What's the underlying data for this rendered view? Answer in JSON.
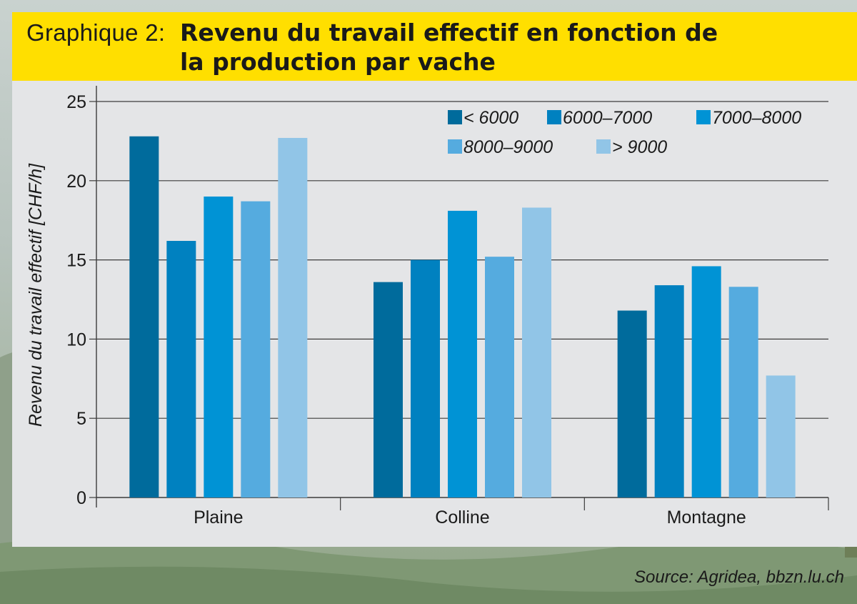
{
  "header": {
    "prefix": "Graphique 2:",
    "title": "Revenu du travail effectif en fonction de la production par vache"
  },
  "source": "Source: Agridea, bbzn.lu.ch",
  "colors": {
    "title_band": "#ffdf00",
    "panel": "#e4e5e7",
    "series": [
      "#006b9c",
      "#0081c0",
      "#0093d5",
      "#55abdf",
      "#91c5e7"
    ]
  },
  "chart_data": {
    "type": "bar",
    "title": "Revenu du travail effectif en fonction de la production par vache",
    "xlabel": "",
    "ylabel": "Revenu du travail effectif  [CHF/h]",
    "ylim": [
      0,
      25
    ],
    "yticks": [
      0,
      5,
      10,
      15,
      20,
      25
    ],
    "grid": true,
    "legend_position": "top-right",
    "categories": [
      "Plaine",
      "Colline",
      "Montagne"
    ],
    "series": [
      {
        "name": "< 6000",
        "values": [
          22.8,
          13.6,
          11.8
        ]
      },
      {
        "name": "6000–7000",
        "values": [
          16.2,
          15.0,
          13.4
        ]
      },
      {
        "name": "7000–8000",
        "values": [
          19.0,
          18.1,
          14.6
        ]
      },
      {
        "name": "8000–9000",
        "values": [
          18.7,
          15.2,
          13.3
        ]
      },
      {
        "name": "> 9000",
        "values": [
          22.7,
          18.3,
          7.7
        ]
      }
    ]
  }
}
